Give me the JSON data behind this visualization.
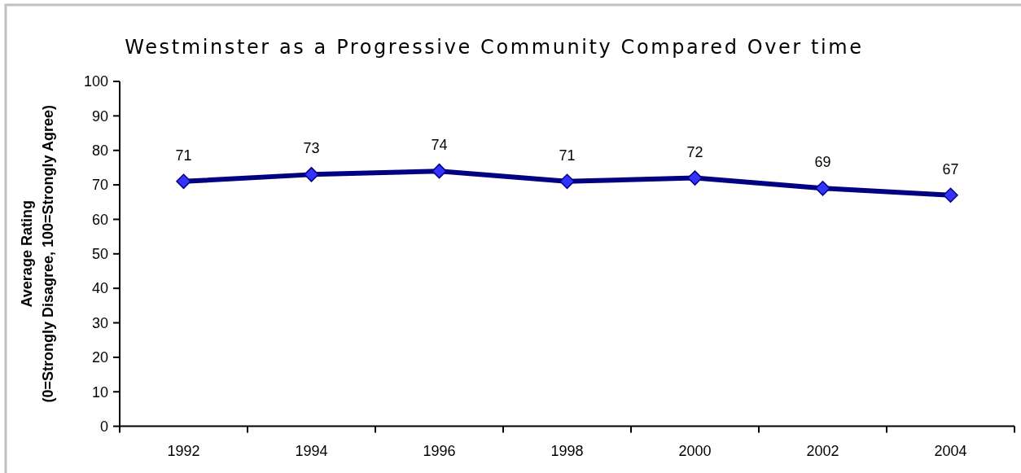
{
  "chart_data": {
    "type": "line",
    "title": "Westminster as a Progressive Community Compared Over time",
    "ylabel": "Average Rating\n(0=Strongly Disagree, 100=Strongly Agree)",
    "categories": [
      "1992",
      "1994",
      "1996",
      "1998",
      "2000",
      "2002",
      "2004"
    ],
    "series": [
      {
        "color": "#000080",
        "values": [
          71,
          73,
          74,
          71,
          72,
          69,
          67
        ]
      }
    ],
    "ylim": [
      0,
      100
    ],
    "yticks": [
      0,
      10,
      20,
      30,
      40,
      50,
      60,
      70,
      80,
      90,
      100
    ],
    "marker": "diamond",
    "data_labels": true
  }
}
